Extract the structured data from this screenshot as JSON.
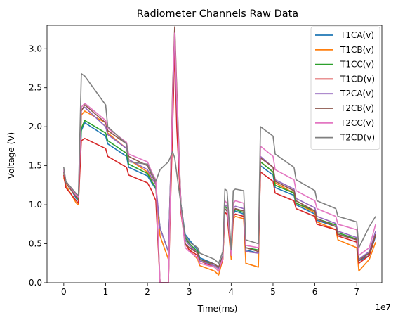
{
  "chart_data": {
    "type": "line",
    "title": "Radiometer Channels Raw Data",
    "xlabel": "Time(ms)",
    "ylabel": "Voltage (V)",
    "x_offset_label": "1e7",
    "xlim": [
      -0.4,
      7.6
    ],
    "ylim": [
      0,
      3.3
    ],
    "xticks": [
      0,
      1,
      2,
      3,
      4,
      5,
      6,
      7
    ],
    "yticks": [
      0.0,
      0.5,
      1.0,
      1.5,
      2.0,
      2.5,
      3.0
    ],
    "ytick_labels": [
      "0.0",
      "0.5",
      "1.0",
      "1.5",
      "2.0",
      "2.5",
      "3.0"
    ],
    "grid": false,
    "legend_position": "top-right",
    "x": [
      0,
      0.05,
      0.3,
      0.35,
      0.42,
      0.5,
      1.0,
      1.05,
      1.5,
      1.55,
      2.0,
      2.1,
      2.2,
      2.3,
      2.5,
      2.6,
      2.65,
      2.7,
      2.8,
      2.9,
      3.0,
      3.2,
      3.25,
      3.6,
      3.7,
      3.8,
      3.85,
      3.9,
      4.0,
      4.05,
      4.1,
      4.3,
      4.35,
      4.65,
      4.7,
      5.0,
      5.05,
      5.5,
      5.55,
      6.0,
      6.05,
      6.5,
      6.55,
      7.0,
      7.05,
      7.3,
      7.45
    ],
    "series": [
      {
        "name": "T1CA(v)",
        "color": "#1f77b4",
        "values": [
          1.42,
          1.3,
          1.08,
          1.05,
          1.95,
          2.05,
          1.88,
          1.78,
          1.62,
          1.48,
          1.37,
          1.28,
          1.2,
          0.7,
          0.4,
          2.2,
          3.1,
          2.2,
          1.0,
          0.62,
          0.55,
          0.42,
          0.32,
          0.24,
          0.2,
          0.35,
          0.95,
          0.92,
          0.4,
          0.88,
          0.92,
          0.88,
          0.42,
          0.38,
          1.5,
          1.38,
          1.22,
          1.12,
          1.0,
          0.88,
          0.8,
          0.72,
          0.62,
          0.55,
          0.28,
          0.35,
          0.6
        ]
      },
      {
        "name": "T1CB(v)",
        "color": "#ff7f0e",
        "values": [
          1.35,
          1.25,
          1.02,
          1.0,
          2.15,
          2.2,
          2.05,
          1.92,
          1.72,
          1.58,
          1.42,
          1.3,
          1.22,
          0.6,
          0.3,
          2.3,
          3.2,
          2.3,
          0.95,
          0.5,
          0.42,
          0.3,
          0.22,
          0.15,
          0.1,
          0.3,
          0.9,
          0.88,
          0.3,
          0.82,
          0.85,
          0.82,
          0.25,
          0.2,
          1.55,
          1.42,
          1.28,
          1.15,
          1.02,
          0.9,
          0.78,
          0.68,
          0.55,
          0.45,
          0.15,
          0.3,
          0.52
        ]
      },
      {
        "name": "T1CC(v)",
        "color": "#2ca02c",
        "values": [
          1.4,
          1.28,
          1.1,
          1.07,
          1.98,
          2.08,
          1.92,
          1.82,
          1.66,
          1.52,
          1.4,
          1.3,
          1.22,
          0.7,
          0.4,
          2.2,
          3.1,
          2.2,
          0.98,
          0.58,
          0.5,
          0.4,
          0.3,
          0.22,
          0.18,
          0.34,
          0.98,
          0.95,
          0.42,
          0.9,
          0.94,
          0.9,
          0.45,
          0.42,
          1.55,
          1.42,
          1.25,
          1.15,
          1.02,
          0.92,
          0.82,
          0.74,
          0.64,
          0.56,
          0.3,
          0.38,
          0.62
        ]
      },
      {
        "name": "T1CD(v)",
        "color": "#d62728",
        "values": [
          1.38,
          1.22,
          1.05,
          1.02,
          1.82,
          1.85,
          1.72,
          1.62,
          1.48,
          1.38,
          1.28,
          1.18,
          1.05,
          0.0,
          0.0,
          2.0,
          3.0,
          2.0,
          0.9,
          0.5,
          0.42,
          0.35,
          0.28,
          0.2,
          0.15,
          0.3,
          0.9,
          0.88,
          0.35,
          0.85,
          0.88,
          0.85,
          0.4,
          0.38,
          1.42,
          1.3,
          1.15,
          1.05,
          0.95,
          0.85,
          0.75,
          0.68,
          0.6,
          0.52,
          0.25,
          0.35,
          0.62
        ]
      },
      {
        "name": "T2CA(v)",
        "color": "#9467bd",
        "values": [
          1.43,
          1.3,
          1.12,
          1.1,
          2.22,
          2.25,
          2.0,
          1.9,
          1.72,
          1.58,
          1.45,
          1.34,
          1.26,
          0.7,
          0.4,
          2.3,
          3.2,
          2.3,
          1.0,
          0.55,
          0.48,
          0.38,
          0.28,
          0.22,
          0.18,
          0.34,
          1.0,
          0.98,
          0.38,
          0.95,
          0.98,
          0.95,
          0.4,
          0.38,
          1.62,
          1.48,
          1.32,
          1.2,
          1.08,
          0.96,
          0.85,
          0.76,
          0.66,
          0.58,
          0.3,
          0.4,
          0.66
        ]
      },
      {
        "name": "T2CB(v)",
        "color": "#8c564b",
        "values": [
          1.42,
          1.28,
          1.1,
          1.08,
          2.2,
          2.28,
          2.05,
          1.95,
          1.78,
          1.62,
          1.5,
          1.38,
          1.28,
          0.0,
          0.0,
          2.5,
          3.28,
          2.5,
          0.98,
          0.5,
          0.45,
          0.38,
          0.3,
          0.24,
          0.2,
          0.34,
          0.95,
          0.92,
          0.4,
          0.92,
          0.95,
          0.92,
          0.45,
          0.4,
          1.6,
          1.48,
          1.3,
          1.18,
          1.05,
          0.92,
          0.82,
          0.72,
          0.62,
          0.55,
          0.28,
          0.38,
          0.62
        ]
      },
      {
        "name": "T2CC(v)",
        "color": "#e377c2",
        "values": [
          1.45,
          1.3,
          1.12,
          1.1,
          2.25,
          2.3,
          2.08,
          1.98,
          1.8,
          1.65,
          1.55,
          1.42,
          1.32,
          0.0,
          0.0,
          2.4,
          3.2,
          2.4,
          0.95,
          0.45,
          0.4,
          0.32,
          0.25,
          0.2,
          0.15,
          0.32,
          1.05,
          1.02,
          0.35,
          1.02,
          1.05,
          1.02,
          0.48,
          0.45,
          1.75,
          1.62,
          1.45,
          1.32,
          1.18,
          1.05,
          0.95,
          0.85,
          0.75,
          0.68,
          0.35,
          0.45,
          0.75
        ]
      },
      {
        "name": "T2CD(v)",
        "color": "#7f7f7f",
        "values": [
          1.48,
          1.3,
          1.14,
          1.12,
          2.68,
          2.65,
          2.28,
          2.0,
          1.78,
          1.55,
          1.52,
          1.4,
          1.3,
          1.45,
          1.55,
          1.68,
          1.6,
          1.4,
          1.0,
          0.6,
          0.52,
          0.45,
          0.38,
          0.3,
          0.25,
          0.4,
          1.2,
          1.18,
          0.42,
          1.18,
          1.2,
          1.18,
          0.55,
          0.5,
          2.0,
          1.88,
          1.65,
          1.48,
          1.32,
          1.18,
          1.05,
          0.95,
          0.85,
          0.78,
          0.45,
          0.72,
          0.85
        ]
      }
    ]
  }
}
